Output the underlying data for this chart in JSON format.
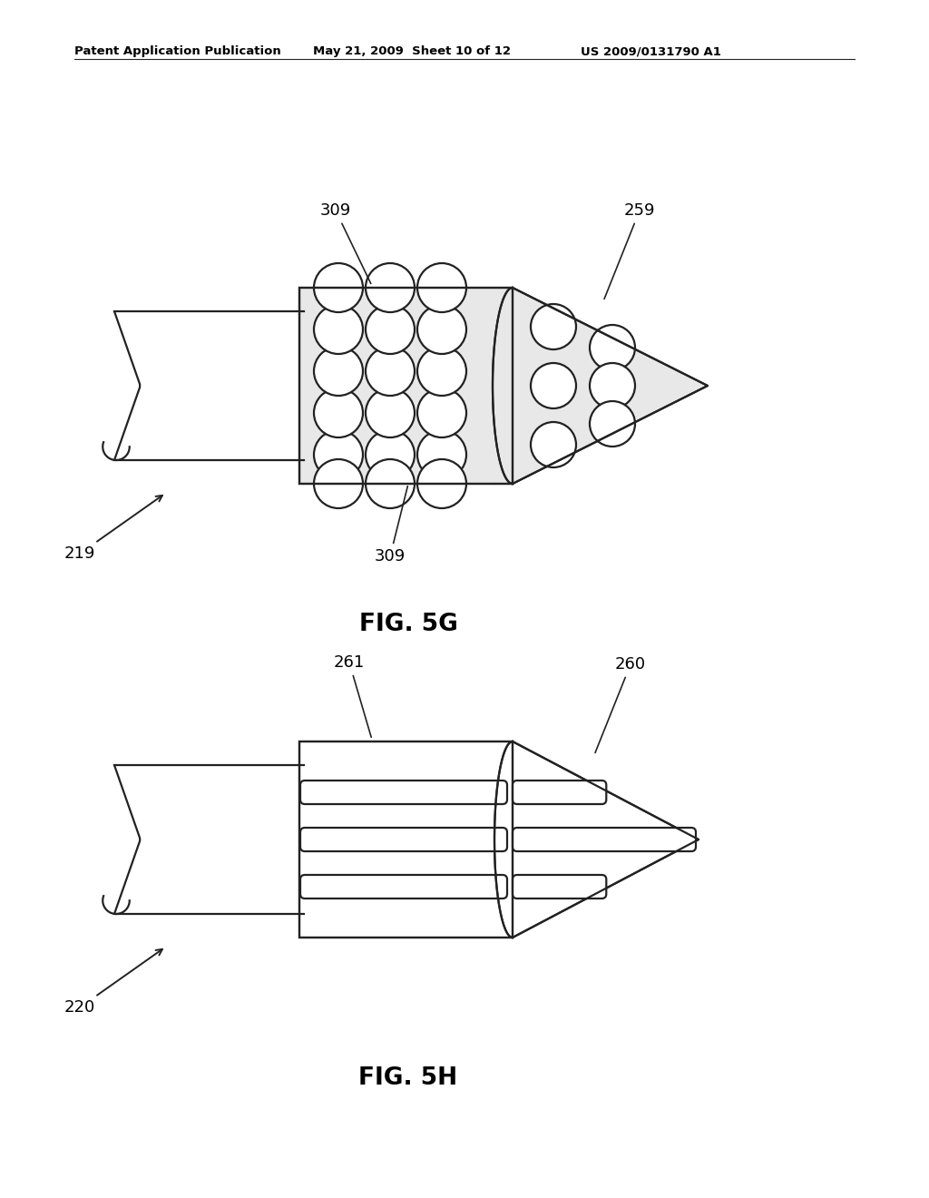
{
  "bg_color": "#ffffff",
  "header_left": "Patent Application Publication",
  "header_mid": "May 21, 2009  Sheet 10 of 12",
  "header_right": "US 2009/0131790 A1",
  "line_color": "#222222",
  "line_width": 1.6,
  "fig5g_label": "FIG. 5G",
  "fig5h_label": "FIG. 5H",
  "ref_309a": "309",
  "ref_309b": "309",
  "ref_259": "259",
  "ref_219": "219",
  "ref_261": "261",
  "ref_260": "260",
  "ref_220": "220"
}
